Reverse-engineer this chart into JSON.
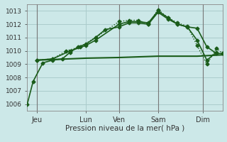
{
  "title": "",
  "xlabel": "Pression niveau de la mer( hPa )",
  "ylabel": "",
  "bg_color": "#cce8e8",
  "grid_color": "#aacccc",
  "line_color": "#1a5c1a",
  "xlim": [
    0,
    100
  ],
  "ylim": [
    1005.5,
    1013.5
  ],
  "yticks": [
    1006,
    1007,
    1008,
    1009,
    1010,
    1011,
    1012,
    1013
  ],
  "xtick_positions": [
    5,
    30,
    47,
    67,
    90
  ],
  "xtick_labels": [
    "Jeu",
    "Lun",
    "Ven",
    "Sam",
    "Dim"
  ],
  "vlines": [
    5,
    47,
    67,
    90
  ],
  "series": [
    {
      "x": [
        0,
        3,
        8,
        13,
        18,
        22,
        26,
        30,
        35,
        40,
        47,
        52,
        57,
        62,
        67,
        72,
        77,
        82,
        87,
        92,
        97,
        100
      ],
      "y": [
        1006.0,
        1007.7,
        1009.1,
        1009.3,
        1009.4,
        1009.9,
        1010.3,
        1010.5,
        1011.0,
        1011.6,
        1011.8,
        1012.1,
        1012.1,
        1012.0,
        1012.9,
        1012.4,
        1012.0,
        1011.8,
        1011.7,
        1010.3,
        1009.8,
        1009.8
      ],
      "style": "-",
      "marker": "D",
      "markersize": 2.5,
      "linewidth": 1.2
    },
    {
      "x": [
        5,
        13,
        22,
        30,
        35,
        47,
        52,
        57,
        62,
        67,
        72,
        77,
        82,
        87,
        92,
        97
      ],
      "y": [
        1009.3,
        1009.4,
        1010.0,
        1010.4,
        1010.8,
        1012.0,
        1012.2,
        1012.2,
        1012.1,
        1013.0,
        1012.5,
        1012.0,
        1011.8,
        1010.8,
        1009.3,
        1009.9
      ],
      "style": "-",
      "marker": "D",
      "markersize": 2.5,
      "linewidth": 1.2
    },
    {
      "x": [
        5,
        13,
        20,
        27,
        35,
        47,
        52,
        57,
        62,
        67,
        72,
        77,
        82,
        87,
        92,
        97,
        100
      ],
      "y": [
        1009.3,
        1009.4,
        1010.0,
        1010.3,
        1011.0,
        1012.2,
        1012.3,
        1012.3,
        1012.0,
        1013.1,
        1012.5,
        1012.1,
        1011.85,
        1010.4,
        1009.0,
        1010.2,
        1009.8
      ],
      "style": ":",
      "marker": "D",
      "markersize": 2.5,
      "linewidth": 1.0
    },
    {
      "x": [
        5,
        30,
        47,
        67,
        87,
        100
      ],
      "y": [
        1009.3,
        1009.45,
        1009.5,
        1009.6,
        1009.6,
        1009.7
      ],
      "style": "-",
      "marker": null,
      "markersize": 0,
      "linewidth": 1.5
    }
  ],
  "xlabel_fontsize": 7.5,
  "xtick_fontsize": 7,
  "ytick_fontsize": 6.5
}
